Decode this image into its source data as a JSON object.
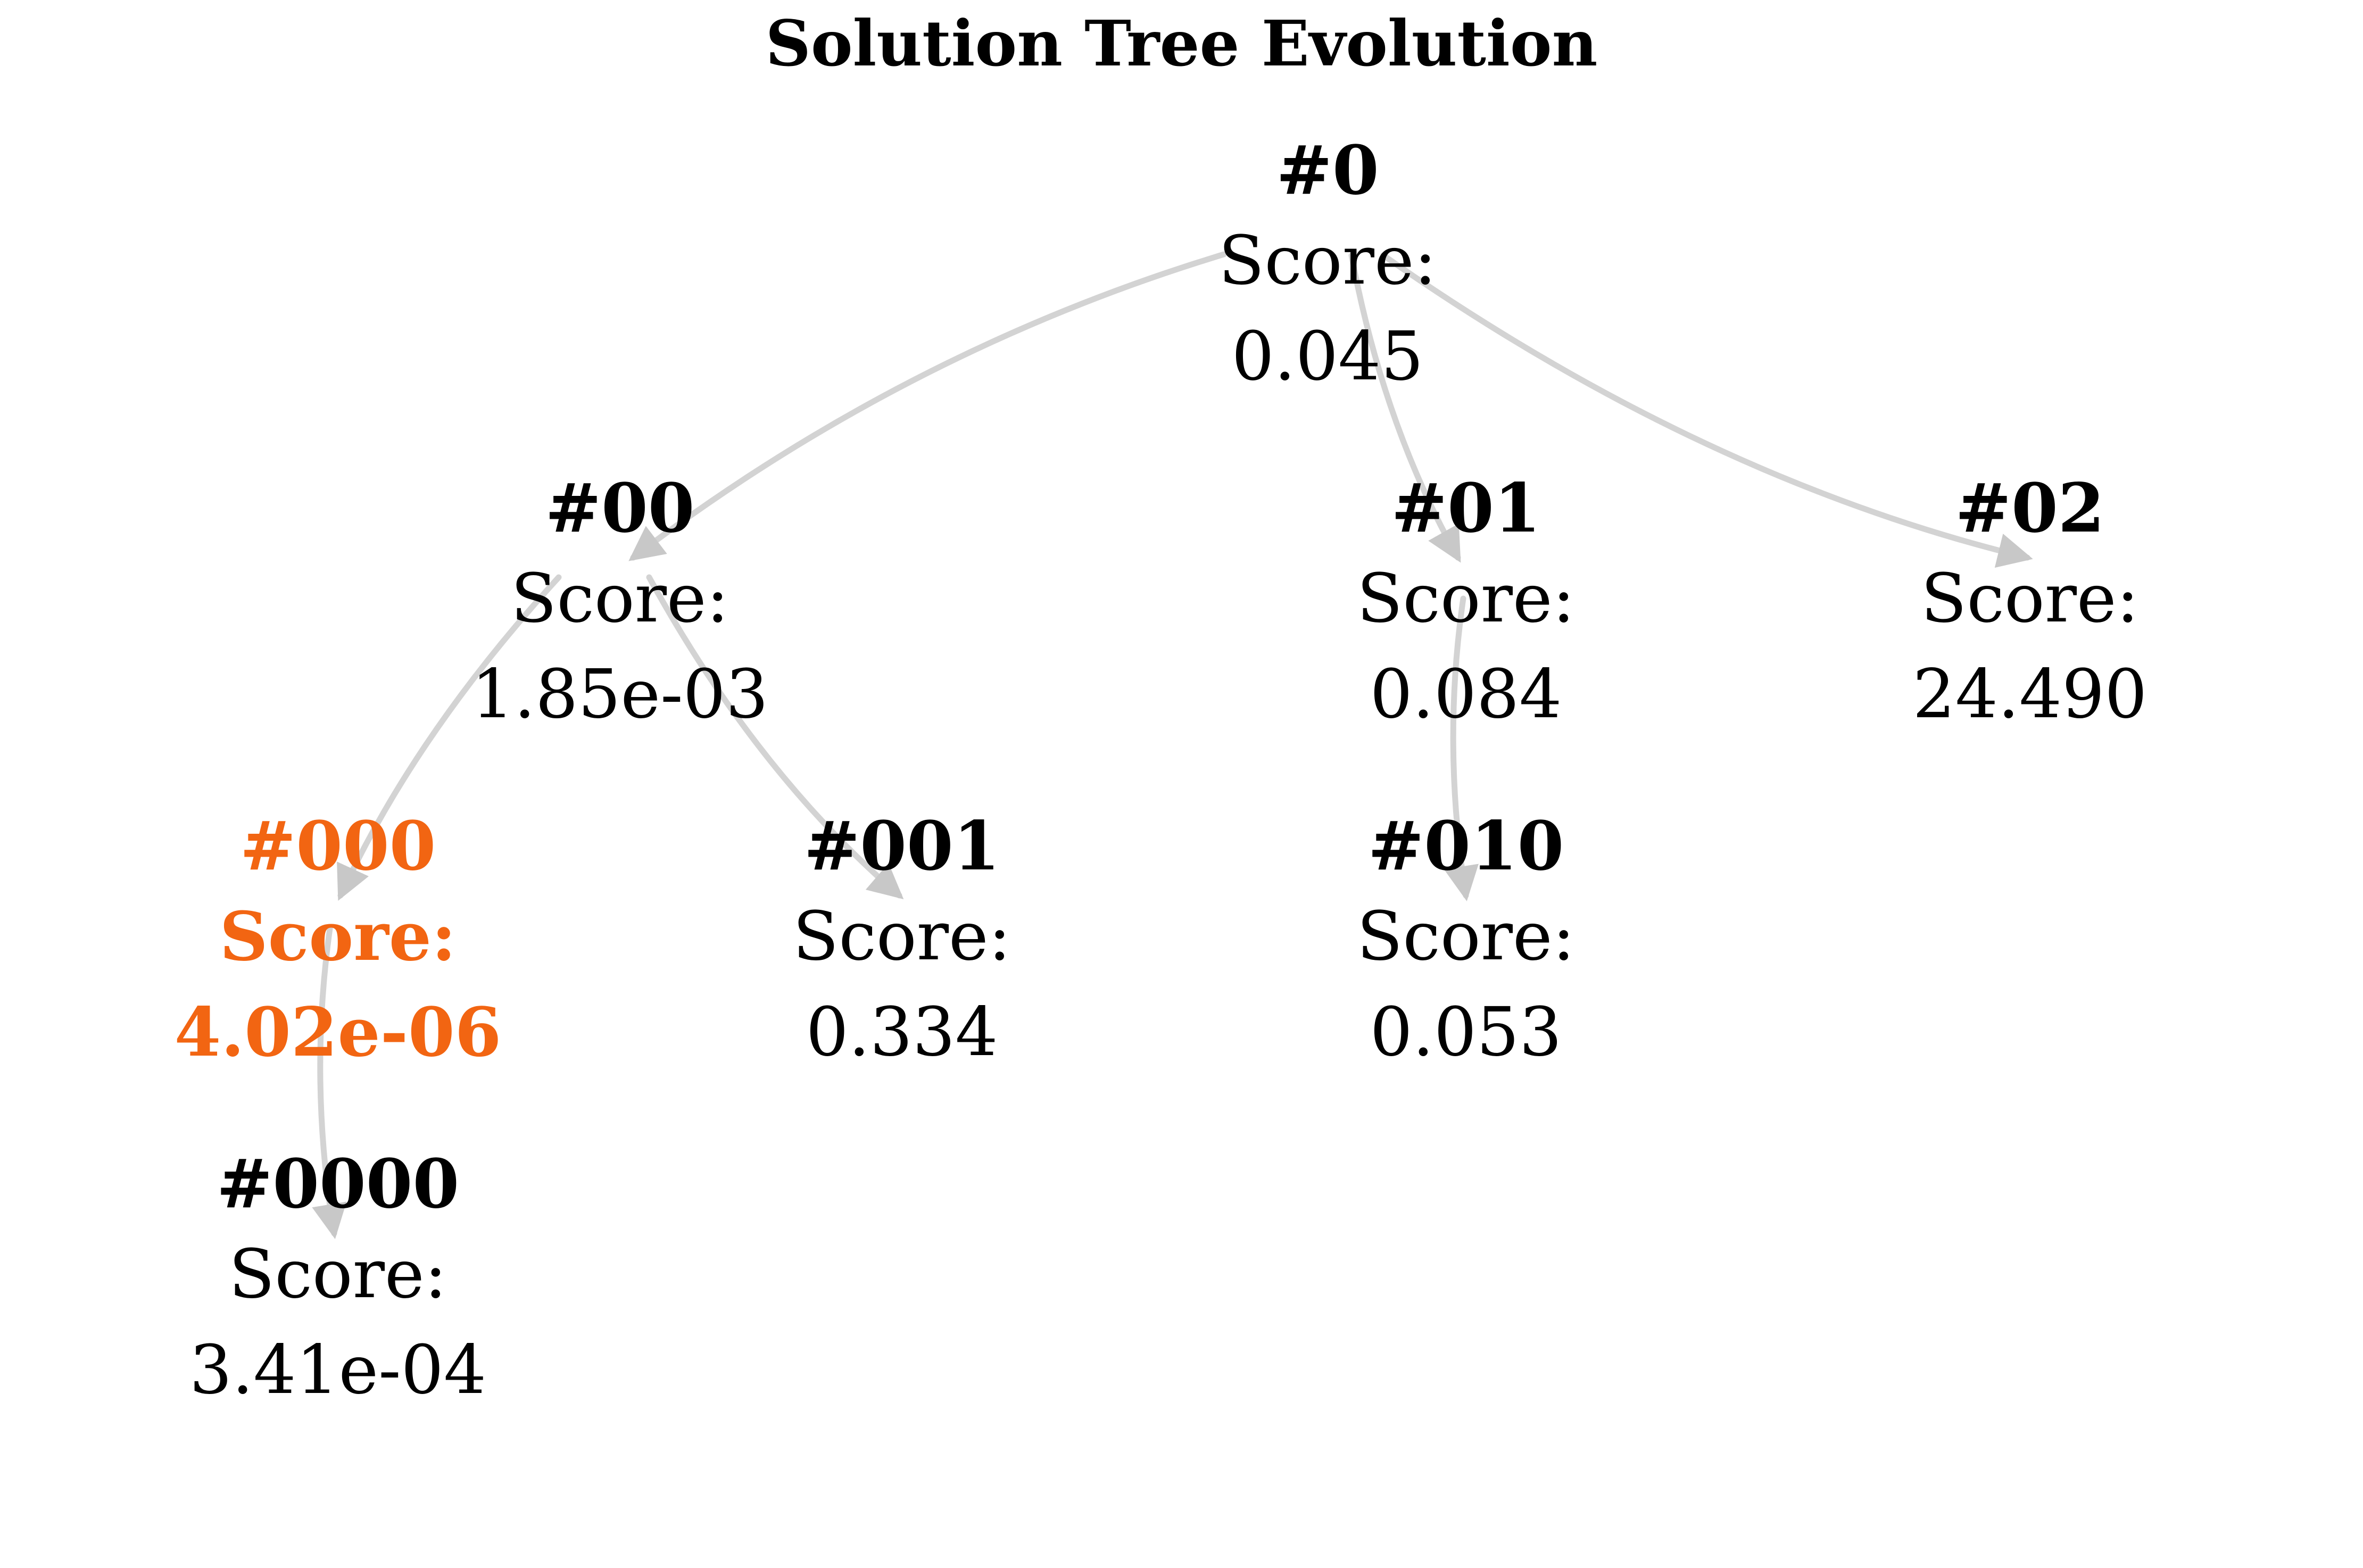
{
  "title": "Solution Tree Evolution",
  "colors": {
    "edge": "#d3d3d3",
    "text": "#000000",
    "best": "#f26512"
  },
  "nodes": [
    {
      "id": "#0",
      "score_label": "Score:",
      "score": "0.045",
      "best": false
    },
    {
      "id": "#00",
      "score_label": "Score:",
      "score": "1.85e-03",
      "best": false
    },
    {
      "id": "#01",
      "score_label": "Score:",
      "score": "0.084",
      "best": false
    },
    {
      "id": "#02",
      "score_label": "Score:",
      "score": "24.490",
      "best": false
    },
    {
      "id": "#000",
      "score_label": "Score:",
      "score": "4.02e-06",
      "best": true
    },
    {
      "id": "#001",
      "score_label": "Score:",
      "score": "0.334",
      "best": false
    },
    {
      "id": "#010",
      "score_label": "Score:",
      "score": "0.053",
      "best": false
    },
    {
      "id": "#0000",
      "score_label": "Score:",
      "score": "3.41e-04",
      "best": false
    }
  ],
  "edges": [
    {
      "from": "#0",
      "to": "#00"
    },
    {
      "from": "#0",
      "to": "#01"
    },
    {
      "from": "#0",
      "to": "#02"
    },
    {
      "from": "#00",
      "to": "#000"
    },
    {
      "from": "#00",
      "to": "#001"
    },
    {
      "from": "#01",
      "to": "#010"
    },
    {
      "from": "#000",
      "to": "#0000"
    }
  ]
}
